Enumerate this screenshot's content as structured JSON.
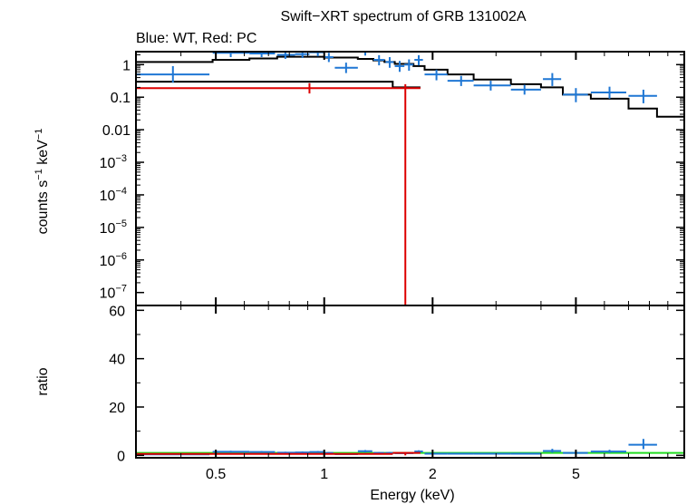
{
  "chart_data": {
    "type": "scatter",
    "title": "Swift−XRT spectrum of GRB 131002A",
    "subtitle": "Blue: WT, Red: PC",
    "xlabel": "Energy (keV)",
    "x_scale": "log",
    "xlim": [
      0.3,
      10
    ],
    "x_ticks": [
      0.5,
      1,
      2,
      5
    ],
    "x_tick_labels": [
      "0.5",
      "1",
      "2",
      "5"
    ],
    "colors": {
      "wt": "#1f77d4",
      "pc": "#dd0000",
      "model": "#000000",
      "unity": "#22dd22"
    },
    "top_panel": {
      "ylabel_main": "counts s",
      "ylabel_exp1": "−1",
      "ylabel_mid": " keV",
      "ylabel_exp2": "−1",
      "y_scale": "log",
      "ylim": [
        4e-08,
        2.5
      ],
      "y_ticks": [
        {
          "value": 1,
          "mantissa": "1",
          "exp": ""
        },
        {
          "value": 0.1,
          "mantissa": "0.1",
          "exp": ""
        },
        {
          "value": 0.01,
          "mantissa": "0.01",
          "exp": ""
        },
        {
          "value": 0.001,
          "mantissa": "10",
          "exp": "−3"
        },
        {
          "value": 0.0001,
          "mantissa": "10",
          "exp": "−4"
        },
        {
          "value": 1e-05,
          "mantissa": "10",
          "exp": "−5"
        },
        {
          "value": 1e-06,
          "mantissa": "10",
          "exp": "−6"
        },
        {
          "value": 1e-07,
          "mantissa": "10",
          "exp": "−7"
        }
      ],
      "series": [
        {
          "key": "wt",
          "points": [
            {
              "x": 0.38,
              "xlo": 0.3,
              "xhi": 0.48,
              "y": 0.5,
              "ylo": 0.28,
              "yhi": 0.9
            },
            {
              "x": 0.55,
              "xlo": 0.49,
              "xhi": 0.62,
              "y": 2.3,
              "ylo": 1.7,
              "yhi": 3.0
            },
            {
              "x": 0.67,
              "xlo": 0.62,
              "xhi": 0.73,
              "y": 2.2,
              "ylo": 1.7,
              "yhi": 2.9
            },
            {
              "x": 0.78,
              "xlo": 0.74,
              "xhi": 0.83,
              "y": 2.0,
              "ylo": 1.5,
              "yhi": 2.7
            },
            {
              "x": 0.87,
              "xlo": 0.83,
              "xhi": 0.91,
              "y": 2.1,
              "ylo": 1.6,
              "yhi": 2.8
            },
            {
              "x": 0.96,
              "xlo": 0.91,
              "xhi": 1.0,
              "y": 2.4,
              "ylo": 1.8,
              "yhi": 3.1
            },
            {
              "x": 1.03,
              "xlo": 1.0,
              "xhi": 1.06,
              "y": 1.7,
              "ylo": 1.2,
              "yhi": 2.3
            },
            {
              "x": 1.15,
              "xlo": 1.07,
              "xhi": 1.24,
              "y": 0.8,
              "ylo": 0.55,
              "yhi": 1.15
            },
            {
              "x": 1.3,
              "xlo": 1.24,
              "xhi": 1.36,
              "y": 2.6,
              "ylo": 1.9,
              "yhi": 3.4
            },
            {
              "x": 1.42,
              "xlo": 1.37,
              "xhi": 1.47,
              "y": 1.4,
              "ylo": 0.95,
              "yhi": 1.95
            },
            {
              "x": 1.52,
              "xlo": 1.48,
              "xhi": 1.56,
              "y": 1.2,
              "ylo": 0.8,
              "yhi": 1.7
            },
            {
              "x": 1.62,
              "xlo": 1.57,
              "xhi": 1.67,
              "y": 0.9,
              "ylo": 0.6,
              "yhi": 1.3
            },
            {
              "x": 1.72,
              "xlo": 1.67,
              "xhi": 1.77,
              "y": 1.0,
              "ylo": 0.65,
              "yhi": 1.45
            },
            {
              "x": 1.83,
              "xlo": 1.78,
              "xhi": 1.88,
              "y": 1.4,
              "ylo": 0.95,
              "yhi": 1.95
            },
            {
              "x": 2.05,
              "xlo": 1.9,
              "xhi": 2.2,
              "y": 0.5,
              "ylo": 0.33,
              "yhi": 0.7
            },
            {
              "x": 2.4,
              "xlo": 2.2,
              "xhi": 2.6,
              "y": 0.32,
              "ylo": 0.22,
              "yhi": 0.45
            },
            {
              "x": 2.9,
              "xlo": 2.6,
              "xhi": 3.3,
              "y": 0.23,
              "ylo": 0.16,
              "yhi": 0.32
            },
            {
              "x": 3.6,
              "xlo": 3.3,
              "xhi": 4.0,
              "y": 0.17,
              "ylo": 0.12,
              "yhi": 0.24
            },
            {
              "x": 4.3,
              "xlo": 4.05,
              "xhi": 4.55,
              "y": 0.36,
              "ylo": 0.22,
              "yhi": 0.55
            },
            {
              "x": 5.0,
              "xlo": 4.6,
              "xhi": 5.4,
              "y": 0.12,
              "ylo": 0.07,
              "yhi": 0.19
            },
            {
              "x": 6.2,
              "xlo": 5.5,
              "xhi": 6.9,
              "y": 0.14,
              "ylo": 0.09,
              "yhi": 0.21
            },
            {
              "x": 7.7,
              "xlo": 7.0,
              "xhi": 8.4,
              "y": 0.11,
              "ylo": 0.065,
              "yhi": 0.17
            }
          ]
        },
        {
          "key": "pc",
          "points": [
            {
              "x": 0.91,
              "xlo": 0.3,
              "xhi": 1.55,
              "y": 0.19,
              "ylo": 0.13,
              "yhi": 0.27
            },
            {
              "x": 1.68,
              "xlo": 1.55,
              "xhi": 1.85,
              "y": 0.19,
              "ylo": 4e-08,
              "yhi": 0.25
            }
          ]
        }
      ],
      "model_wt": [
        [
          0.3,
          1.2
        ],
        [
          0.49,
          1.2
        ],
        [
          0.49,
          1.4
        ],
        [
          0.62,
          1.4
        ],
        [
          0.62,
          1.55
        ],
        [
          0.74,
          1.55
        ],
        [
          0.74,
          1.75
        ],
        [
          1.0,
          1.75
        ],
        [
          1.0,
          1.65
        ],
        [
          1.24,
          1.65
        ],
        [
          1.24,
          1.5
        ],
        [
          1.37,
          1.5
        ],
        [
          1.37,
          1.35
        ],
        [
          1.47,
          1.35
        ],
        [
          1.47,
          1.2
        ],
        [
          1.57,
          1.2
        ],
        [
          1.57,
          1.05
        ],
        [
          1.77,
          1.05
        ],
        [
          1.77,
          0.9
        ],
        [
          1.9,
          0.9
        ],
        [
          1.9,
          0.7
        ],
        [
          2.2,
          0.7
        ],
        [
          2.2,
          0.5
        ],
        [
          2.6,
          0.5
        ],
        [
          2.6,
          0.35
        ],
        [
          3.3,
          0.35
        ],
        [
          3.3,
          0.25
        ],
        [
          4.0,
          0.25
        ],
        [
          4.0,
          0.2
        ],
        [
          4.6,
          0.2
        ],
        [
          4.6,
          0.12
        ],
        [
          5.5,
          0.12
        ],
        [
          5.5,
          0.09
        ],
        [
          7.0,
          0.09
        ],
        [
          7.0,
          0.045
        ],
        [
          8.4,
          0.045
        ],
        [
          8.4,
          0.025
        ],
        [
          10,
          0.025
        ]
      ],
      "model_pc": [
        [
          0.3,
          0.3
        ],
        [
          1.55,
          0.3
        ],
        [
          1.55,
          0.2
        ],
        [
          1.85,
          0.2
        ]
      ]
    },
    "bottom_panel": {
      "ylabel": "ratio",
      "ylim": [
        -1,
        62
      ],
      "y_ticks": [
        0,
        20,
        40,
        60
      ],
      "y_tick_labels": [
        "0",
        "20",
        "40",
        "60"
      ],
      "unity": 1,
      "series": [
        {
          "key": "wt",
          "points": [
            {
              "x": 0.38,
              "xlo": 0.3,
              "xhi": 0.48,
              "y": 0.4,
              "ylo": 0.2,
              "yhi": 0.7
            },
            {
              "x": 0.55,
              "xlo": 0.49,
              "xhi": 0.62,
              "y": 1.5,
              "ylo": 1.2,
              "yhi": 1.9
            },
            {
              "x": 0.67,
              "xlo": 0.62,
              "xhi": 0.73,
              "y": 1.4,
              "ylo": 1.1,
              "yhi": 1.8
            },
            {
              "x": 0.78,
              "xlo": 0.74,
              "xhi": 0.83,
              "y": 1.1,
              "ylo": 0.8,
              "yhi": 1.5
            },
            {
              "x": 0.87,
              "xlo": 0.83,
              "xhi": 0.91,
              "y": 1.2,
              "ylo": 0.9,
              "yhi": 1.6
            },
            {
              "x": 0.96,
              "xlo": 0.91,
              "xhi": 1.0,
              "y": 1.4,
              "ylo": 1.0,
              "yhi": 1.8
            },
            {
              "x": 1.03,
              "xlo": 1.0,
              "xhi": 1.06,
              "y": 1.0,
              "ylo": 0.7,
              "yhi": 1.4
            },
            {
              "x": 1.15,
              "xlo": 1.07,
              "xhi": 1.24,
              "y": 0.5,
              "ylo": 0.3,
              "yhi": 0.7
            },
            {
              "x": 1.3,
              "xlo": 1.24,
              "xhi": 1.36,
              "y": 1.7,
              "ylo": 1.2,
              "yhi": 2.2
            },
            {
              "x": 1.42,
              "xlo": 1.37,
              "xhi": 1.47,
              "y": 1.0,
              "ylo": 0.7,
              "yhi": 1.4
            },
            {
              "x": 1.52,
              "xlo": 1.48,
              "xhi": 1.56,
              "y": 1.0,
              "ylo": 0.7,
              "yhi": 1.4
            },
            {
              "x": 1.62,
              "xlo": 1.57,
              "xhi": 1.67,
              "y": 0.9,
              "ylo": 0.6,
              "yhi": 1.3
            },
            {
              "x": 1.72,
              "xlo": 1.67,
              "xhi": 1.77,
              "y": 0.9,
              "ylo": 0.6,
              "yhi": 1.3
            },
            {
              "x": 1.83,
              "xlo": 1.78,
              "xhi": 1.88,
              "y": 1.6,
              "ylo": 1.1,
              "yhi": 2.1
            },
            {
              "x": 2.05,
              "xlo": 1.9,
              "xhi": 2.2,
              "y": 0.7,
              "ylo": 0.5,
              "yhi": 1.0
            },
            {
              "x": 2.4,
              "xlo": 2.2,
              "xhi": 2.6,
              "y": 0.7,
              "ylo": 0.5,
              "yhi": 1.0
            },
            {
              "x": 2.9,
              "xlo": 2.6,
              "xhi": 3.3,
              "y": 0.7,
              "ylo": 0.5,
              "yhi": 1.0
            },
            {
              "x": 3.6,
              "xlo": 3.3,
              "xhi": 4.0,
              "y": 0.7,
              "ylo": 0.5,
              "yhi": 1.0
            },
            {
              "x": 4.3,
              "xlo": 4.05,
              "xhi": 4.55,
              "y": 1.8,
              "ylo": 1.1,
              "yhi": 2.7
            },
            {
              "x": 5.0,
              "xlo": 4.6,
              "xhi": 5.4,
              "y": 1.0,
              "ylo": 0.6,
              "yhi": 1.6
            },
            {
              "x": 6.2,
              "xlo": 5.5,
              "xhi": 6.9,
              "y": 1.6,
              "ylo": 1.0,
              "yhi": 2.3
            },
            {
              "x": 7.7,
              "xlo": 7.0,
              "xhi": 8.4,
              "y": 4.4,
              "ylo": 2.6,
              "yhi": 6.8
            }
          ]
        },
        {
          "key": "pc",
          "points": [
            {
              "x": 0.91,
              "xlo": 0.3,
              "xhi": 1.55,
              "y": 0.6,
              "ylo": 0.4,
              "yhi": 0.9
            },
            {
              "x": 1.68,
              "xlo": 1.55,
              "xhi": 1.85,
              "y": 1.0,
              "ylo": 0.0,
              "yhi": 1.3
            }
          ]
        }
      ]
    }
  }
}
